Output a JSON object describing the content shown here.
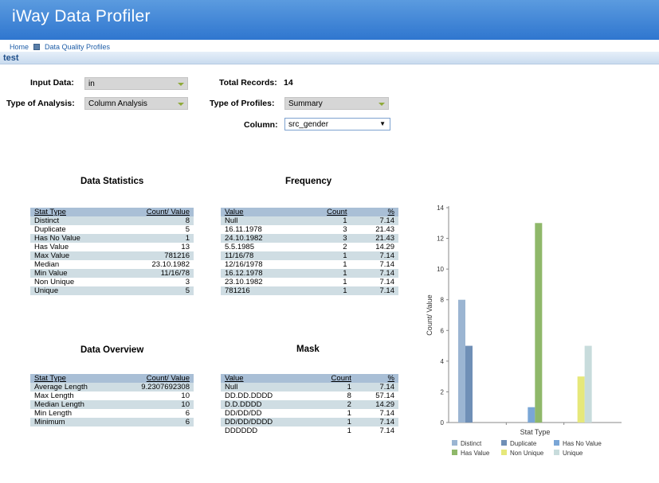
{
  "header": {
    "title": "iWay Data Profiler"
  },
  "breadcrumb": {
    "home": "Home",
    "current": "Data Quality Profiles"
  },
  "profile_name": "test",
  "form": {
    "input_data_label": "Input Data:",
    "input_data_value": "in",
    "analysis_label": "Type of Analysis:",
    "analysis_value": "Column Analysis",
    "total_records_label": "Total Records:",
    "total_records_value": "14",
    "profiles_label": "Type of Profiles:",
    "profiles_value": "Summary",
    "column_label": "Column:",
    "column_value": "src_gender"
  },
  "data_statistics": {
    "title": "Data Statistics",
    "headers": [
      "Stat Type",
      "Count/ Value"
    ],
    "rows": [
      [
        "Distinct",
        "8"
      ],
      [
        "Duplicate",
        "5"
      ],
      [
        "Has No Value",
        "1"
      ],
      [
        "Has Value",
        "13"
      ],
      [
        "Max Value",
        "781216"
      ],
      [
        "Median",
        "23.10.1982"
      ],
      [
        "Min Value",
        "11/16/78"
      ],
      [
        "Non Unique",
        "3"
      ],
      [
        "Unique",
        "5"
      ]
    ]
  },
  "frequency": {
    "title": "Frequency",
    "headers": [
      "Value",
      "Count",
      "%"
    ],
    "rows": [
      [
        "Null",
        "1",
        "7.14"
      ],
      [
        "16.11.1978",
        "3",
        "21.43"
      ],
      [
        "24.10.1982",
        "3",
        "21.43"
      ],
      [
        "5.5.1985",
        "2",
        "14.29"
      ],
      [
        "11/16/78",
        "1",
        "7.14"
      ],
      [
        "12/16/1978",
        "1",
        "7.14"
      ],
      [
        "16.12.1978",
        "1",
        "7.14"
      ],
      [
        "23.10.1982",
        "1",
        "7.14"
      ],
      [
        "781216",
        "1",
        "7.14"
      ]
    ]
  },
  "data_overview": {
    "title": "Data Overview",
    "headers": [
      "Stat Type",
      "Count/ Value"
    ],
    "rows": [
      [
        "Average Length",
        "9.2307692308"
      ],
      [
        "Max Length",
        "10"
      ],
      [
        "Median Length",
        "10"
      ],
      [
        "Min Length",
        "6"
      ],
      [
        "Minimum",
        "6"
      ]
    ]
  },
  "mask": {
    "title": "Mask",
    "headers": [
      "Value",
      "Count",
      "%"
    ],
    "rows": [
      [
        "Null",
        "1",
        "7.14"
      ],
      [
        "DD.DD.DDDD",
        "8",
        "57.14"
      ],
      [
        "D.D.DDDD",
        "2",
        "14.29"
      ],
      [
        "DD/DD/DD",
        "1",
        "7.14"
      ],
      [
        "DD/DD/DDDD",
        "1",
        "7.14"
      ],
      [
        "DDDDDD",
        "1",
        "7.14"
      ]
    ]
  },
  "chart_data": {
    "type": "bar",
    "title": "",
    "xlabel": "Stat Type",
    "ylabel": "Count/ Value",
    "ylim": [
      0,
      14
    ],
    "yticks": [
      0,
      2,
      4,
      6,
      8,
      10,
      12,
      14
    ],
    "grid": false,
    "legend_position": "bottom",
    "series": [
      {
        "name": "Distinct",
        "value": 8,
        "color": "#9bb5d2",
        "group": 0
      },
      {
        "name": "Duplicate",
        "value": 5,
        "color": "#6f8fb6",
        "group": 0
      },
      {
        "name": "Has No Value",
        "value": 1,
        "color": "#7aa6d6",
        "group": 1
      },
      {
        "name": "Has Value",
        "value": 13,
        "color": "#8fb86a",
        "group": 1
      },
      {
        "name": "Non Unique",
        "value": 3,
        "color": "#e6e87a",
        "group": 2
      },
      {
        "name": "Unique",
        "value": 5,
        "color": "#c8dcdc",
        "group": 2
      }
    ]
  }
}
